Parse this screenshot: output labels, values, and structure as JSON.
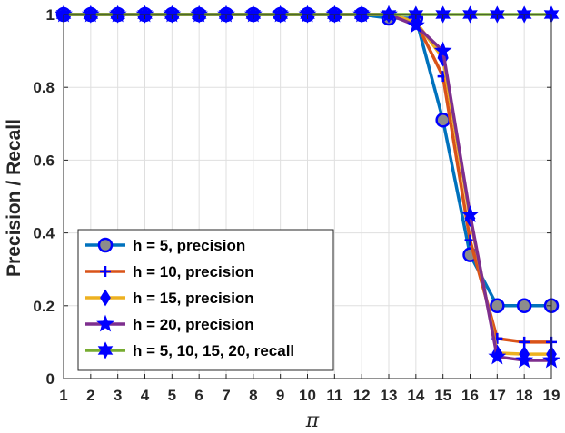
{
  "chart_data": {
    "type": "line",
    "xlabel": "π",
    "ylabel": "Precision / Recall",
    "xlim": [
      1,
      19
    ],
    "ylim": [
      0,
      1
    ],
    "x_ticks": [
      "1",
      "2",
      "3",
      "4",
      "5",
      "6",
      "7",
      "8",
      "9",
      "10",
      "11",
      "12",
      "13",
      "14",
      "15",
      "16",
      "17",
      "18",
      "19"
    ],
    "y_ticks": [
      "0",
      "0.2",
      "0.4",
      "0.6",
      "0.8",
      "1"
    ],
    "grid": true,
    "legend_position": "bottom-left",
    "x": [
      1,
      2,
      3,
      4,
      5,
      6,
      7,
      8,
      9,
      10,
      11,
      12,
      13,
      14,
      15,
      16,
      17,
      18,
      19
    ],
    "series": [
      {
        "name": "h = 5, precision",
        "color": "#0072BD",
        "marker": "circle",
        "marker_fill": "#8c8c8c",
        "values": [
          1,
          1,
          1,
          1,
          1,
          1,
          1,
          1,
          1,
          1,
          1,
          1,
          0.99,
          0.99,
          0.71,
          0.34,
          0.2,
          0.2,
          0.2
        ]
      },
      {
        "name": "h = 10, precision",
        "color": "#D95319",
        "marker": "plus",
        "marker_fill": "none",
        "values": [
          1,
          1,
          1,
          1,
          1,
          1,
          1,
          1,
          1,
          1,
          1,
          1,
          1,
          0.98,
          0.83,
          0.38,
          0.11,
          0.1,
          0.1
        ]
      },
      {
        "name": "h = 15, precision",
        "color": "#EDB120",
        "marker": "diamond",
        "marker_fill": "#0000FF",
        "values": [
          1,
          1,
          1,
          1,
          1,
          1,
          1,
          1,
          1,
          1,
          1,
          1,
          1,
          0.98,
          0.88,
          0.44,
          0.07,
          0.067,
          0.067
        ]
      },
      {
        "name": "h = 20, precision",
        "color": "#7E2F8E",
        "marker": "star",
        "marker_fill": "#0000FF",
        "values": [
          1,
          1,
          1,
          1,
          1,
          1,
          1,
          1,
          1,
          1,
          1,
          1,
          1,
          0.97,
          0.9,
          0.45,
          0.06,
          0.05,
          0.05
        ]
      },
      {
        "name": "h = 5, 10, 15, 20, recall",
        "color": "#77AC30",
        "marker": "hexagram",
        "marker_fill": "#0000FF",
        "values": [
          1,
          1,
          1,
          1,
          1,
          1,
          1,
          1,
          1,
          1,
          1,
          1,
          1,
          1,
          1,
          1,
          1,
          1,
          1
        ]
      }
    ]
  }
}
